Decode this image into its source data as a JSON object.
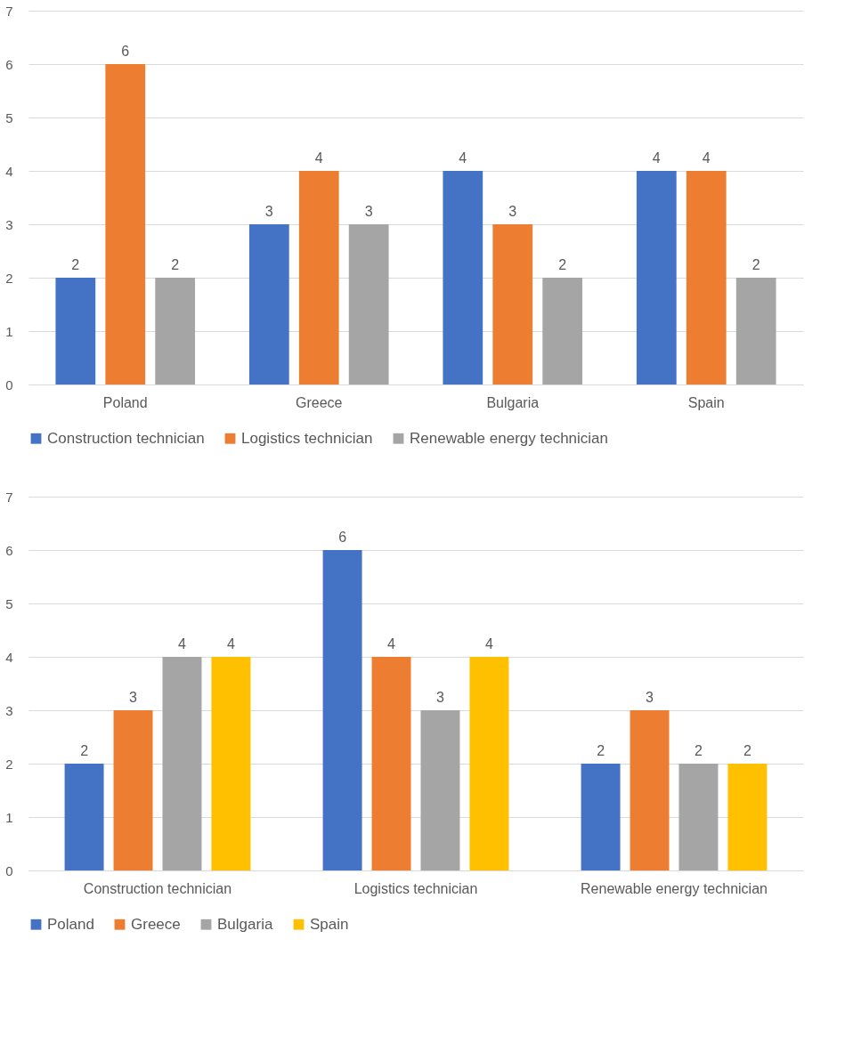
{
  "chart_data": [
    {
      "type": "bar",
      "categories": [
        "Poland",
        "Greece",
        "Bulgaria",
        "Spain"
      ],
      "series": [
        {
          "name": "Construction technician",
          "color": "#4472c4",
          "values": [
            2,
            3,
            4,
            4
          ]
        },
        {
          "name": "Logistics technician",
          "color": "#ed7d31",
          "values": [
            6,
            4,
            3,
            4
          ]
        },
        {
          "name": "Renewable energy technician",
          "color": "#a5a5a5",
          "values": [
            2,
            3,
            2,
            2
          ]
        }
      ],
      "ylim": [
        0,
        7
      ],
      "yticks": [
        0,
        1,
        2,
        3,
        4,
        5,
        6,
        7
      ],
      "grid": "y",
      "legend": "bottom",
      "data_labels": true
    },
    {
      "type": "bar",
      "categories": [
        "Construction technician",
        "Logistics technician",
        "Renewable energy technician"
      ],
      "series": [
        {
          "name": "Poland",
          "color": "#4472c4",
          "values": [
            2,
            6,
            2
          ]
        },
        {
          "name": "Greece",
          "color": "#ed7d31",
          "values": [
            3,
            4,
            3
          ]
        },
        {
          "name": "Bulgaria",
          "color": "#a5a5a5",
          "values": [
            4,
            3,
            2
          ]
        },
        {
          "name": "Spain",
          "color": "#ffc000",
          "values": [
            4,
            4,
            2
          ]
        }
      ],
      "ylim": [
        0,
        7
      ],
      "yticks": [
        0,
        1,
        2,
        3,
        4,
        5,
        6,
        7
      ],
      "grid": "y",
      "legend": "bottom",
      "data_labels": true
    }
  ]
}
